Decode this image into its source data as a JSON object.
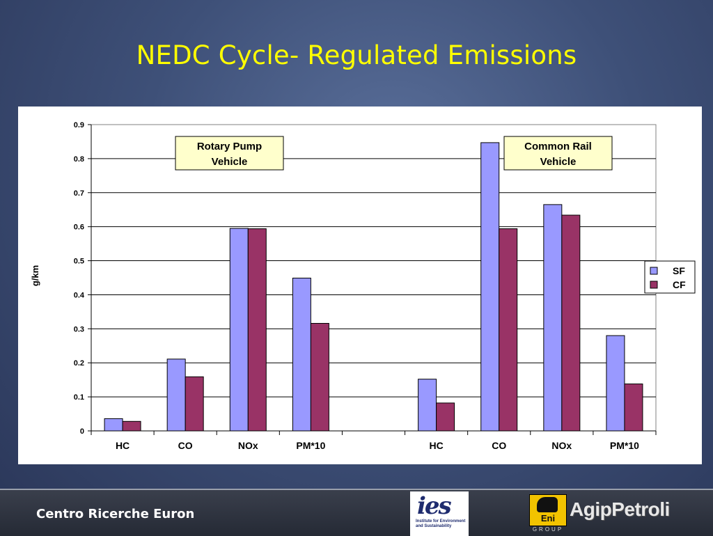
{
  "slide": {
    "title": "NEDC Cycle- Regulated Emissions"
  },
  "footer": {
    "text": "Centro Ricerche Euron",
    "logos": {
      "ies_mark": "ies",
      "ies_subtitle": "Institute for Environment and Sustainability",
      "eni_text": "Eni",
      "eni_group": "GROUP",
      "agip_text": "AgipPetroli"
    }
  },
  "chart_data": {
    "type": "bar",
    "title": "",
    "xlabel": "",
    "ylabel": "g/km",
    "ylim": [
      0,
      0.9
    ],
    "yticks": [
      "0",
      "0.1",
      "0.2",
      "0.3",
      "0.4",
      "0.5",
      "0.6",
      "0.7",
      "0.8",
      "0.9"
    ],
    "grid": true,
    "legend_position": "right",
    "categories": [
      "HC",
      "CO",
      "NOx",
      "PM*10",
      "",
      "HC",
      "CO",
      "NOx",
      "PM*10"
    ],
    "series": [
      {
        "name": "SF",
        "color": "#9999ff",
        "values": [
          0.036,
          0.211,
          0.595,
          0.449,
          null,
          0.152,
          0.847,
          0.665,
          0.28
        ]
      },
      {
        "name": "CF",
        "color": "#993366",
        "values": [
          0.028,
          0.159,
          0.594,
          0.316,
          null,
          0.082,
          0.594,
          0.634,
          0.138
        ]
      }
    ],
    "annotations": [
      {
        "text_lines": [
          "Rotary Pump",
          "Vehicle"
        ]
      },
      {
        "text_lines": [
          "Common Rail",
          "Vehicle"
        ]
      }
    ]
  }
}
